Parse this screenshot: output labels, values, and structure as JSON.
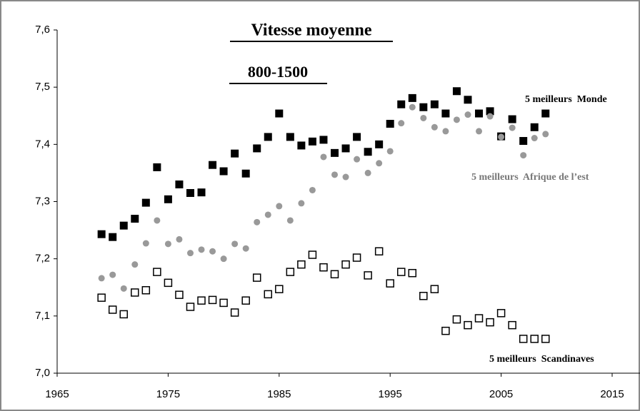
{
  "chart_data": {
    "type": "scatter",
    "title": "Vitesse moyenne",
    "subtitle": "800-1500",
    "x": [
      1969,
      1970,
      1971,
      1972,
      1973,
      1974,
      1975,
      1976,
      1977,
      1978,
      1979,
      1980,
      1981,
      1982,
      1983,
      1984,
      1985,
      1986,
      1987,
      1988,
      1989,
      1990,
      1991,
      1992,
      1993,
      1994,
      1995,
      1996,
      1997,
      1998,
      1999,
      2000,
      2001,
      2002,
      2003,
      2004,
      2005,
      2006,
      2007,
      2008,
      2009
    ],
    "series": [
      {
        "name": "5 meilleurs  Monde",
        "color": "#000000",
        "marker": "filled",
        "values": [
          7.243,
          7.238,
          7.258,
          7.27,
          7.298,
          7.36,
          7.304,
          7.33,
          7.315,
          7.316,
          7.364,
          7.353,
          7.384,
          7.349,
          7.393,
          7.413,
          7.454,
          7.413,
          7.398,
          7.405,
          7.408,
          7.385,
          7.393,
          7.413,
          7.387,
          7.4,
          7.436,
          7.47,
          7.481,
          7.465,
          7.47,
          7.454,
          7.493,
          7.478,
          7.454,
          7.458,
          7.414,
          7.444,
          7.406,
          7.43,
          7.454
        ]
      },
      {
        "name": "5 meilleurs  Afrique de l’est",
        "color": "#999999",
        "marker": "dot",
        "values": [
          7.166,
          7.172,
          7.148,
          7.19,
          7.227,
          7.267,
          7.226,
          7.234,
          7.21,
          7.216,
          7.213,
          7.2,
          7.226,
          7.218,
          7.264,
          7.277,
          7.292,
          7.267,
          7.297,
          7.32,
          7.378,
          7.347,
          7.343,
          7.374,
          7.35,
          7.367,
          7.388,
          7.437,
          7.465,
          7.446,
          7.43,
          7.423,
          7.443,
          7.452,
          7.423,
          7.449,
          7.413,
          7.429,
          7.381,
          7.411,
          7.418
        ]
      },
      {
        "name": "5 meilleurs  Scandinaves",
        "color": "#000000",
        "marker": "open",
        "values": [
          7.132,
          7.111,
          7.103,
          7.141,
          7.145,
          7.177,
          7.158,
          7.137,
          7.116,
          7.127,
          7.128,
          7.123,
          7.106,
          7.127,
          7.167,
          7.138,
          7.147,
          7.177,
          7.19,
          7.207,
          7.185,
          7.173,
          7.19,
          7.202,
          7.171,
          7.213,
          7.157,
          7.177,
          7.175,
          7.135,
          7.147,
          7.074,
          7.094,
          7.084,
          7.096,
          7.089,
          7.105,
          7.084,
          7.06,
          7.06,
          7.06
        ]
      }
    ],
    "xlim": [
      1965,
      2015
    ],
    "xticks": [
      1965,
      1975,
      1985,
      1995,
      2005,
      2015
    ],
    "ylim": [
      7.0,
      7.6
    ],
    "yticks": [
      {
        "value": 7.0,
        "label": "7,0"
      },
      {
        "value": 7.1,
        "label": "7,1"
      },
      {
        "value": 7.2,
        "label": "7,2"
      },
      {
        "value": 7.3,
        "label": "7,3"
      },
      {
        "value": 7.4,
        "label": "7,4"
      },
      {
        "value": 7.5,
        "label": "7,5"
      },
      {
        "value": 7.6,
        "label": "7,6"
      }
    ],
    "grid": false
  }
}
